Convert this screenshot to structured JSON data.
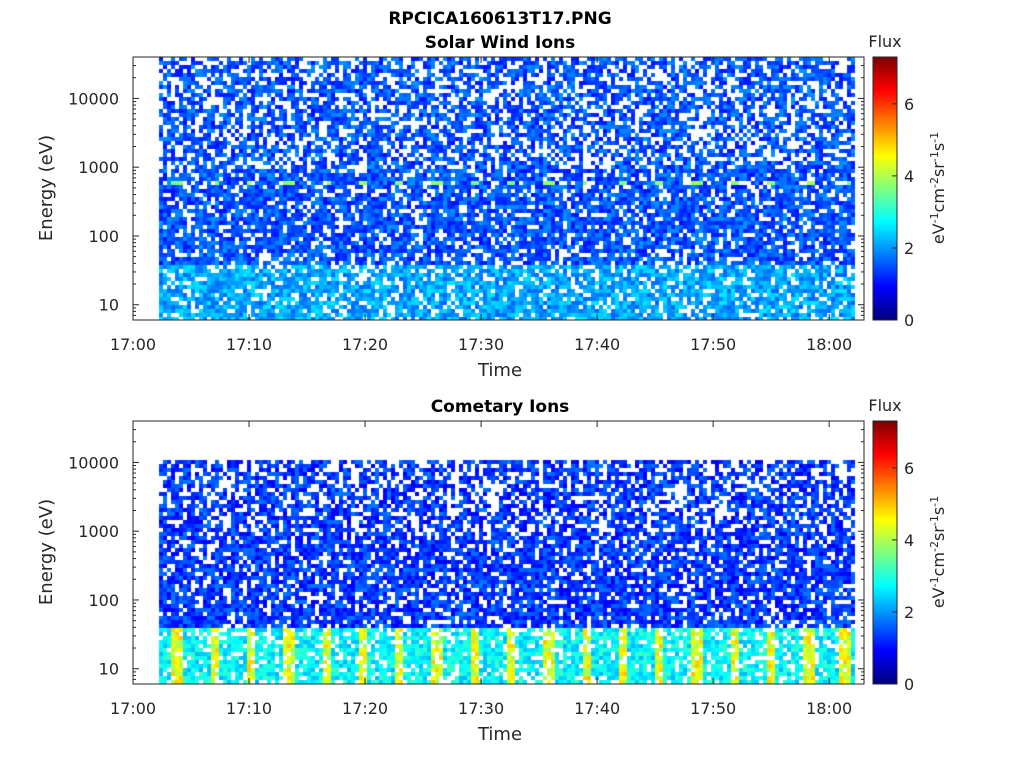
{
  "figure": {
    "title": "RPCICA160613T17.PNG"
  },
  "colormap": "jet",
  "chart_data": [
    {
      "type": "heatmap",
      "title": "Solar Wind Ions",
      "xlabel": "Time",
      "ylabel": "Energy (eV)",
      "x_ticks": [
        "17:00",
        "17:10",
        "17:20",
        "17:30",
        "17:40",
        "17:50",
        "18:00"
      ],
      "x_tick_minutes": [
        0,
        10,
        20,
        30,
        40,
        50,
        60
      ],
      "xlim_minutes": [
        0,
        63
      ],
      "data_x_range_minutes": [
        2.2,
        62.1
      ],
      "y_scale": "log",
      "y_ticks": [
        "10",
        "100",
        "1000",
        "10000"
      ],
      "y_tick_values": [
        10,
        100,
        1000,
        10000
      ],
      "ylim": [
        6,
        40000
      ],
      "data_y_range": [
        6,
        40000
      ],
      "colorbar": {
        "title": "Flux",
        "label": "eV-1cm-2sr-1s-1",
        "ticks": [
          "0",
          "2",
          "4",
          "6"
        ],
        "tick_values": [
          0,
          2,
          4,
          6
        ],
        "range": [
          0,
          7.3
        ]
      },
      "features": {
        "peak_band_energy_eV": 650,
        "peak_band_level": 3.5,
        "background_level": 1.0,
        "low_energy_level": 1.6
      }
    },
    {
      "type": "heatmap",
      "title": "Cometary Ions",
      "xlabel": "Time",
      "ylabel": "Energy (eV)",
      "x_ticks": [
        "17:00",
        "17:10",
        "17:20",
        "17:30",
        "17:40",
        "17:50",
        "18:00"
      ],
      "x_tick_minutes": [
        0,
        10,
        20,
        30,
        40,
        50,
        60
      ],
      "xlim_minutes": [
        0,
        63
      ],
      "data_x_range_minutes": [
        2.2,
        62.1
      ],
      "y_scale": "log",
      "y_ticks": [
        "10",
        "100",
        "1000",
        "10000"
      ],
      "y_tick_values": [
        10,
        100,
        1000,
        10000
      ],
      "ylim": [
        6,
        40000
      ],
      "data_y_range": [
        6,
        11000
      ],
      "colorbar": {
        "title": "Flux",
        "label": "eV-1cm-2sr-1s-1",
        "ticks": [
          "0",
          "2",
          "4",
          "6"
        ],
        "tick_values": [
          0,
          2,
          4,
          6
        ],
        "range": [
          0,
          7.3
        ]
      },
      "features": {
        "peak_band_energy_eV": 15,
        "peak_band_level": 3.8,
        "background_level": 0.8,
        "low_energy_level": 2.2
      }
    }
  ]
}
